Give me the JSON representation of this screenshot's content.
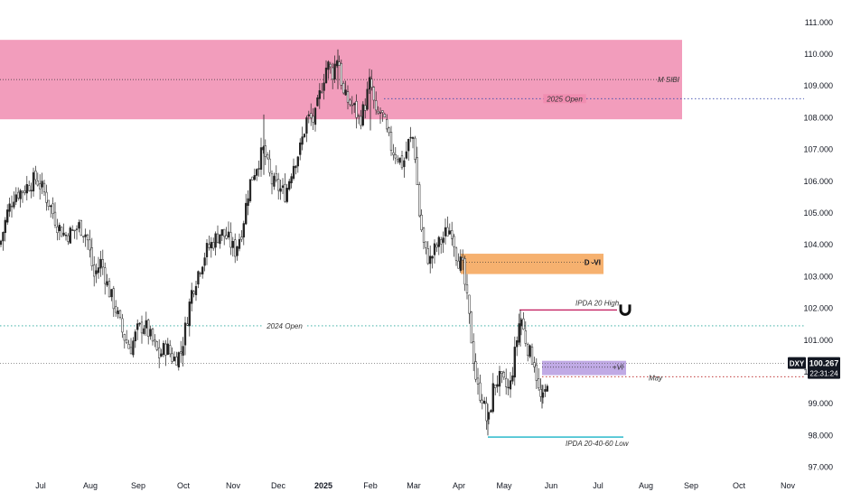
{
  "chart_data": {
    "type": "candlestick",
    "symbol": "DXY",
    "last_price": "100.267",
    "countdown": "22:31:24",
    "y_axis": {
      "min": 97.0,
      "max": 111.0,
      "ticks": [
        "97.000",
        "98.000",
        "99.000",
        "100.000",
        "101.000",
        "102.000",
        "103.000",
        "104.000",
        "105.000",
        "106.000",
        "107.000",
        "108.000",
        "109.000",
        "110.000",
        "111.000"
      ]
    },
    "x_axis": {
      "ticks": [
        {
          "label": "Jul",
          "bold": false
        },
        {
          "label": "Aug",
          "bold": false
        },
        {
          "label": "Sep",
          "bold": false
        },
        {
          "label": "Oct",
          "bold": false
        },
        {
          "label": "Nov",
          "bold": false
        },
        {
          "label": "Dec",
          "bold": false
        },
        {
          "label": "2025",
          "bold": true
        },
        {
          "label": "Feb",
          "bold": false
        },
        {
          "label": "Mar",
          "bold": false
        },
        {
          "label": "Apr",
          "bold": false
        },
        {
          "label": "May",
          "bold": false
        },
        {
          "label": "Jun",
          "bold": false
        },
        {
          "label": "Jul",
          "bold": false
        },
        {
          "label": "Aug",
          "bold": false
        },
        {
          "label": "Sep",
          "bold": false
        },
        {
          "label": "Oct",
          "bold": false
        },
        {
          "label": "Nov",
          "bold": false
        }
      ]
    },
    "price_path": [
      [
        0,
        104.0
      ],
      [
        8,
        105.0
      ],
      [
        16,
        105.6
      ],
      [
        24,
        105.7
      ],
      [
        32,
        105.9
      ],
      [
        40,
        106.1
      ],
      [
        48,
        105.7
      ],
      [
        56,
        105.2
      ],
      [
        64,
        104.6
      ],
      [
        72,
        104.3
      ],
      [
        80,
        104.4
      ],
      [
        88,
        104.6
      ],
      [
        96,
        104.3
      ],
      [
        104,
        103.0
      ],
      [
        112,
        103.5
      ],
      [
        120,
        102.6
      ],
      [
        128,
        102.0
      ],
      [
        136,
        101.2
      ],
      [
        144,
        100.7
      ],
      [
        152,
        101.3
      ],
      [
        160,
        101.5
      ],
      [
        168,
        101.0
      ],
      [
        176,
        100.5
      ],
      [
        184,
        100.8
      ],
      [
        192,
        100.4
      ],
      [
        200,
        100.6
      ],
      [
        206,
        101.5
      ],
      [
        212,
        102.5
      ],
      [
        220,
        103.2
      ],
      [
        228,
        103.8
      ],
      [
        236,
        104.1
      ],
      [
        244,
        104.4
      ],
      [
        252,
        104.2
      ],
      [
        260,
        103.8
      ],
      [
        268,
        104.5
      ],
      [
        276,
        105.9
      ],
      [
        284,
        106.5
      ],
      [
        292,
        107.0
      ],
      [
        300,
        106.0
      ],
      [
        308,
        105.8
      ],
      [
        316,
        105.6
      ],
      [
        324,
        106.5
      ],
      [
        332,
        107.0
      ],
      [
        340,
        108.0
      ],
      [
        348,
        107.9
      ],
      [
        356,
        109.0
      ],
      [
        362,
        109.7
      ],
      [
        368,
        109.4
      ],
      [
        374,
        110.0
      ],
      [
        380,
        108.7
      ],
      [
        386,
        108.5
      ],
      [
        392,
        108.3
      ],
      [
        398,
        107.9
      ],
      [
        404,
        108.4
      ],
      [
        410,
        109.2
      ],
      [
        416,
        108.0
      ],
      [
        422,
        108.2
      ],
      [
        428,
        107.5
      ],
      [
        434,
        107.0
      ],
      [
        440,
        106.8
      ],
      [
        446,
        106.5
      ],
      [
        452,
        107.2
      ],
      [
        458,
        107.4
      ],
      [
        464,
        105.0
      ],
      [
        470,
        103.8
      ],
      [
        476,
        103.5
      ],
      [
        482,
        103.9
      ],
      [
        488,
        104.1
      ],
      [
        494,
        104.4
      ],
      [
        500,
        104.5
      ],
      [
        506,
        103.6
      ],
      [
        512,
        103.3
      ],
      [
        518,
        102.0
      ],
      [
        522,
        101.0
      ],
      [
        528,
        99.5
      ],
      [
        534,
        99.2
      ],
      [
        540,
        98.3
      ],
      [
        546,
        99.5
      ],
      [
        552,
        99.8
      ],
      [
        558,
        99.6
      ],
      [
        564,
        99.4
      ],
      [
        570,
        100.6
      ],
      [
        576,
        101.8
      ],
      [
        580,
        101.2
      ],
      [
        586,
        100.6
      ],
      [
        592,
        100.3
      ],
      [
        596,
        99.4
      ],
      [
        600,
        99.0
      ],
      [
        604,
        99.4
      ],
      [
        608,
        100.26
      ]
    ],
    "zones": [
      {
        "label": "M SIBI",
        "color": "#f08cb0",
        "y_top": 110.45,
        "y_bottom": 107.95,
        "line_y": 109.2
      },
      {
        "label": "D -VI",
        "color": "#f5a356",
        "y_top": 103.72,
        "y_bottom": 103.08,
        "line_y": 103.45
      },
      {
        "label": "+VI",
        "color": "#b59be0",
        "y_top": 100.35,
        "y_bottom": 99.9,
        "line_y": 100.15
      }
    ],
    "levels": [
      {
        "label": "2025 Open",
        "color": "#3949ab",
        "y": 108.6
      },
      {
        "label": "2024 Open",
        "color": "#26a69a",
        "y": 101.45
      },
      {
        "label": "May",
        "color": "#b71c1c",
        "y": 99.85
      },
      {
        "label": "IPDA 20 High",
        "color": "#c2185b",
        "y": 101.95
      },
      {
        "label": "IPDA 20-40-60 Low",
        "color": "#00acc1",
        "y": 97.95
      }
    ]
  }
}
